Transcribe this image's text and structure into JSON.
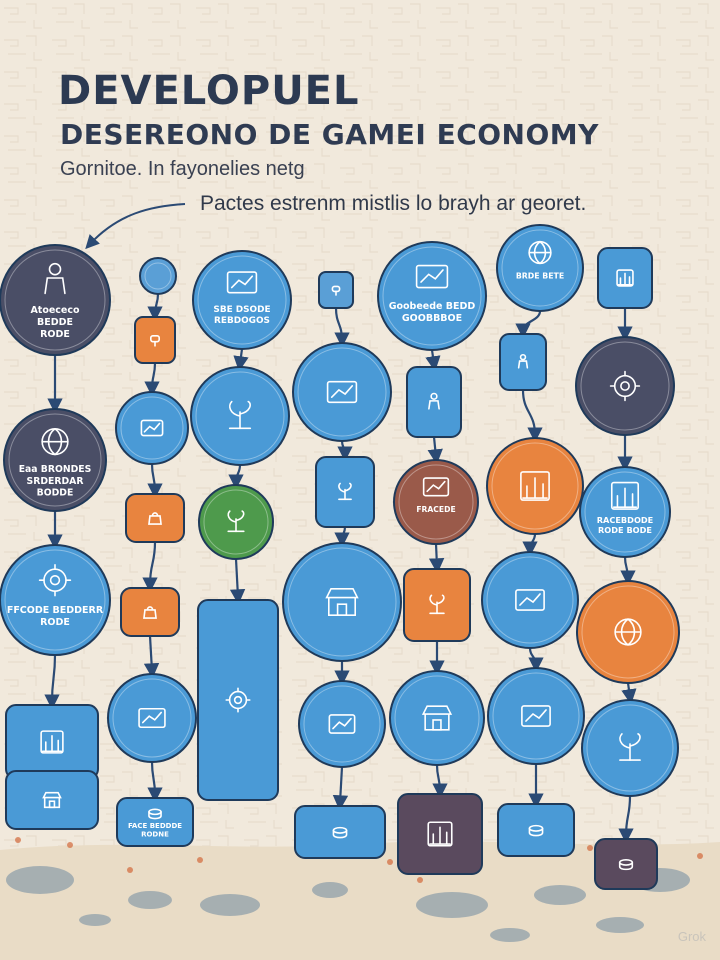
{
  "header": {
    "title": "DEVELOPUEL",
    "subtitle": "DESEREONO DE GAMEI ECONOMY",
    "line3": "Gornitoe. In fayonelies netg",
    "line4": "Pactes estrenm mistlis lo brayh ar georet."
  },
  "colors": {
    "blue": "#4a9ad6",
    "blue_dark": "#2d6fa8",
    "slate": "#4a4e66",
    "orange": "#e8843f",
    "green": "#4e9a4c",
    "brown": "#9a5a4a",
    "plum": "#5a4a5e",
    "arrow": "#2b4a74"
  },
  "diagram": {
    "labels": {
      "n0": "Atoececo\nBEDDE\nRODE",
      "n1": "Eaa BRONDES\nSRDERDAR\nBODDE",
      "n2": "FFCODE BEDDERR\nRODE",
      "n11": "FACE BEDDDE\nRODNE",
      "n12": "SBE DSODE\nREBDOGOS",
      "n17": "Goobeede BEDD\nGOOBBBOE",
      "n24": "FRACEDE",
      "n28": "BRDE BETE",
      "n36": "RACEBDODE\nRODE BODE"
    }
  }
}
